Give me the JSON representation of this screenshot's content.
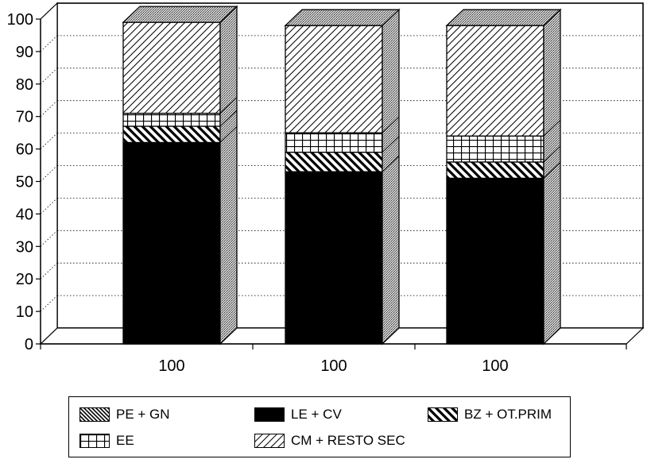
{
  "chart_data": {
    "type": "bar",
    "stacked": true,
    "three_d": true,
    "title": "",
    "xlabel": "",
    "ylabel": "",
    "ylim": [
      0,
      100
    ],
    "yticks": [
      0,
      10,
      20,
      30,
      40,
      50,
      60,
      70,
      80,
      90,
      100
    ],
    "grid": true,
    "legend_position": "bottom",
    "categories": [
      "100",
      "100",
      "100"
    ],
    "series": [
      {
        "name": "LE + CV",
        "pattern": "solid",
        "values": [
          62,
          53,
          51
        ]
      },
      {
        "name": "BZ + OT.PRIM",
        "pattern": "diag-thick",
        "values": [
          5,
          6,
          5
        ]
      },
      {
        "name": "EE",
        "pattern": "grid",
        "values": [
          4,
          6,
          8
        ]
      },
      {
        "name": "PE + GN",
        "pattern": "diag-dense",
        "values": [
          0,
          0,
          0
        ]
      },
      {
        "name": "CM + RESTO SEC",
        "pattern": "diag-thin",
        "values": [
          28,
          33,
          34
        ]
      }
    ],
    "legend_order": [
      "PE + GN",
      "LE + CV",
      "BZ + OT.PRIM",
      "EE",
      "CM + RESTO SEC"
    ]
  },
  "colors": {
    "ink": "#000000",
    "background": "#ffffff",
    "depth_stipple": "#9a9a9a"
  }
}
